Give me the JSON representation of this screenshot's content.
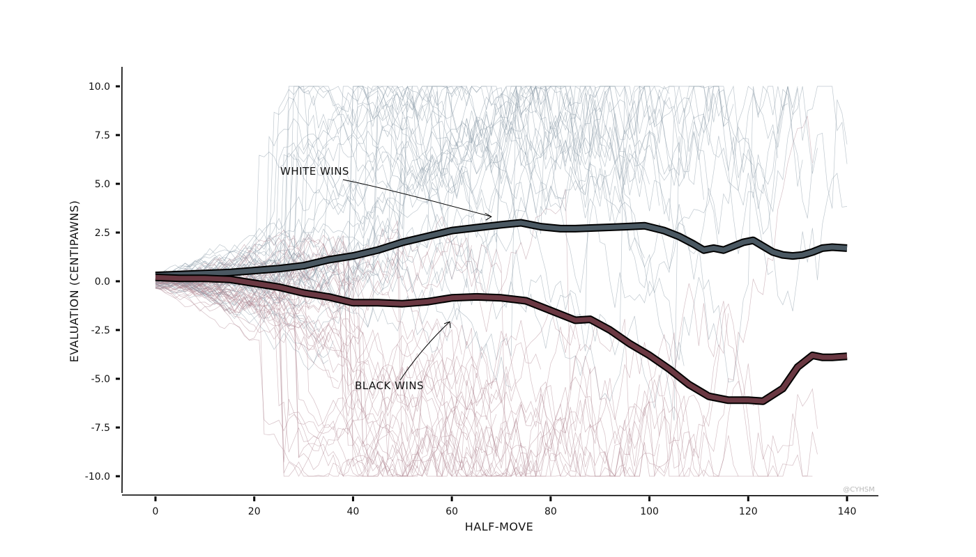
{
  "chart_data": {
    "type": "line",
    "title": "",
    "xlabel": "HALF-MOVE",
    "ylabel": "EVALUATION (CENTIPAWNS)",
    "xlim": [
      -8,
      146
    ],
    "ylim": [
      -11,
      11
    ],
    "xticks": [
      0,
      20,
      40,
      60,
      80,
      100,
      120,
      140
    ],
    "yticks": [
      10.0,
      7.5,
      5.0,
      2.5,
      0.0,
      -2.5,
      -5.0,
      -7.5,
      -10.0
    ],
    "xtick_labels": [
      "0",
      "20",
      "40",
      "60",
      "80",
      "100",
      "120",
      "140"
    ],
    "ytick_labels": [
      "10.0",
      "7.5",
      "5.0",
      "2.5",
      "0.0",
      "-2.5",
      "-5.0",
      "-7.5",
      "-10.0"
    ],
    "grid": false,
    "series": [
      {
        "name": "WHITE WINS",
        "color": "#4a5862",
        "x": [
          0,
          5,
          10,
          15,
          20,
          25,
          30,
          35,
          40,
          45,
          50,
          55,
          60,
          65,
          70,
          74,
          78,
          82,
          85,
          90,
          95,
          99,
          103,
          106,
          109,
          111,
          113,
          115,
          117,
          119,
          121,
          123,
          125,
          127,
          129,
          131,
          133,
          135,
          137,
          140
        ],
        "y": [
          0.3,
          0.35,
          0.4,
          0.45,
          0.55,
          0.65,
          0.8,
          1.1,
          1.3,
          1.6,
          2.0,
          2.3,
          2.6,
          2.75,
          2.9,
          3.0,
          2.8,
          2.7,
          2.7,
          2.75,
          2.8,
          2.85,
          2.6,
          2.3,
          1.9,
          1.6,
          1.7,
          1.6,
          1.8,
          2.0,
          2.1,
          1.8,
          1.5,
          1.35,
          1.3,
          1.35,
          1.5,
          1.7,
          1.75,
          1.7
        ]
      },
      {
        "name": "BLACK WINS",
        "color": "#6a3842",
        "x": [
          0,
          5,
          10,
          15,
          20,
          25,
          30,
          35,
          40,
          45,
          50,
          55,
          60,
          65,
          70,
          75,
          80,
          85,
          88,
          92,
          96,
          100,
          104,
          108,
          112,
          116,
          120,
          123,
          127,
          130,
          133,
          135,
          137,
          140
        ],
        "y": [
          0.2,
          0.15,
          0.15,
          0.1,
          -0.1,
          -0.3,
          -0.6,
          -0.8,
          -1.1,
          -1.1,
          -1.15,
          -1.05,
          -0.85,
          -0.8,
          -0.85,
          -1.0,
          -1.5,
          -2.0,
          -1.95,
          -2.5,
          -3.2,
          -3.8,
          -4.5,
          -5.3,
          -5.9,
          -6.1,
          -6.1,
          -6.15,
          -5.5,
          -4.4,
          -3.8,
          -3.9,
          -3.9,
          -3.85
        ]
      }
    ],
    "background_traces": {
      "description_count": 90,
      "x_max": 140,
      "range": [
        -10,
        10
      ],
      "colors": [
        "#8a9aa8",
        "#b38a96"
      ]
    },
    "annotations": [
      {
        "text": "WHITE WINS",
        "series": 0,
        "point_x": 68,
        "point_y": 3.1
      },
      {
        "text": "BLACK WINS",
        "series": 1,
        "point_x": 60,
        "point_y": -1.0
      }
    ],
    "credit": "@CYHSM"
  }
}
